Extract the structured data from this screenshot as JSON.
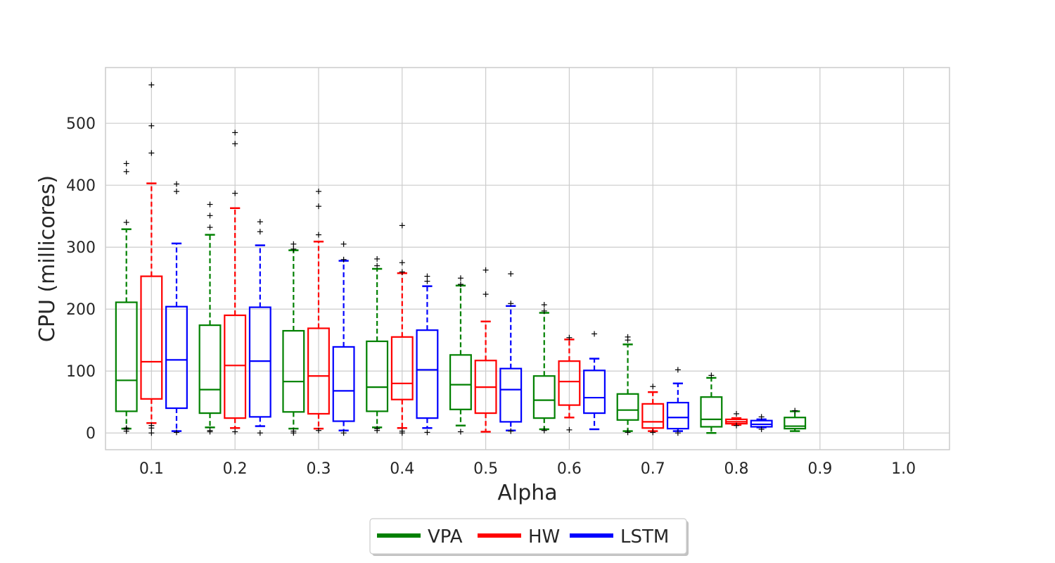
{
  "chart_data": {
    "type": "box",
    "title": "",
    "xlabel": "Alpha",
    "ylabel": "CPU (millicores)",
    "ylim": [
      -27,
      590
    ],
    "xlim": [
      0.045,
      1.055
    ],
    "yticks": [
      0,
      100,
      200,
      300,
      400,
      500
    ],
    "ytick_labels": [
      "0",
      "100",
      "200",
      "300",
      "400",
      "500"
    ],
    "xticks": [
      0.1,
      0.2,
      0.3,
      0.4,
      0.5,
      0.6,
      0.7,
      0.8,
      0.9,
      1.0
    ],
    "xtick_labels": [
      "0.1",
      "0.2",
      "0.3",
      "0.4",
      "0.5",
      "0.6",
      "0.7",
      "0.8",
      "0.9",
      "1.0"
    ],
    "grid": true,
    "legend_position": "bottom-center",
    "series": [
      {
        "name": "VPA",
        "color": "#008000",
        "boxes": [
          {
            "x": 0.07,
            "whislo": 7,
            "q1": 35,
            "med": 85,
            "q3": 211,
            "whishi": 329,
            "fliers": [
              340,
              422,
              435,
              3,
              6,
              8
            ]
          },
          {
            "x": 0.17,
            "whislo": 9,
            "q1": 32,
            "med": 70,
            "q3": 174,
            "whishi": 320,
            "fliers": [
              332,
              351,
              369,
              2,
              4
            ]
          },
          {
            "x": 0.27,
            "whislo": 7,
            "q1": 34,
            "med": 83,
            "q3": 165,
            "whishi": 295,
            "fliers": [
              297,
              305,
              0,
              3
            ]
          },
          {
            "x": 0.37,
            "whislo": 9,
            "q1": 35,
            "med": 74,
            "q3": 148,
            "whishi": 265,
            "fliers": [
              270,
              281,
              4,
              7
            ]
          },
          {
            "x": 0.47,
            "whislo": 12,
            "q1": 38,
            "med": 78,
            "q3": 126,
            "whishi": 238,
            "fliers": [
              240,
              250,
              2
            ]
          },
          {
            "x": 0.57,
            "whislo": 6,
            "q1": 24,
            "med": 53,
            "q3": 92,
            "whishi": 194,
            "fliers": [
              197,
              207,
              4
            ]
          },
          {
            "x": 0.67,
            "whislo": 3,
            "q1": 21,
            "med": 37,
            "q3": 63,
            "whishi": 143,
            "fliers": [
              150,
              155,
              1
            ]
          },
          {
            "x": 0.77,
            "whislo": 0,
            "q1": 10,
            "med": 22,
            "q3": 58,
            "whishi": 89,
            "fliers": [
              93
            ]
          },
          {
            "x": 0.87,
            "whislo": 3,
            "q1": 7,
            "med": 11,
            "q3": 25,
            "whishi": 35,
            "fliers": [
              36
            ]
          }
        ]
      },
      {
        "name": "HW",
        "color": "#ff0000",
        "boxes": [
          {
            "x": 0.1,
            "whislo": 16,
            "q1": 55,
            "med": 115,
            "q3": 253,
            "whishi": 403,
            "fliers": [
              452,
              496,
              562,
              0,
              8,
              12
            ]
          },
          {
            "x": 0.2,
            "whislo": 8,
            "q1": 24,
            "med": 109,
            "q3": 190,
            "whishi": 363,
            "fliers": [
              387,
              467,
              485,
              2
            ]
          },
          {
            "x": 0.3,
            "whislo": 7,
            "q1": 31,
            "med": 92,
            "q3": 169,
            "whishi": 309,
            "fliers": [
              320,
              366,
              390,
              4
            ]
          },
          {
            "x": 0.4,
            "whislo": 8,
            "q1": 54,
            "med": 80,
            "q3": 155,
            "whishi": 258,
            "fliers": [
              260,
              275,
              335,
              0,
              3
            ]
          },
          {
            "x": 0.5,
            "whislo": 2,
            "q1": 32,
            "med": 74,
            "q3": 117,
            "whishi": 180,
            "fliers": [
              224,
              263
            ]
          },
          {
            "x": 0.6,
            "whislo": 25,
            "q1": 45,
            "med": 83,
            "q3": 116,
            "whishi": 151,
            "fliers": [
              154,
              5
            ]
          },
          {
            "x": 0.7,
            "whislo": 3,
            "q1": 8,
            "med": 18,
            "q3": 47,
            "whishi": 66,
            "fliers": [
              75,
              1
            ]
          },
          {
            "x": 0.8,
            "whislo": 13,
            "q1": 15,
            "med": 18,
            "q3": 22,
            "whishi": 24,
            "fliers": [
              31,
              12
            ]
          }
        ]
      },
      {
        "name": "LSTM",
        "color": "#0000ff",
        "boxes": [
          {
            "x": 0.13,
            "whislo": 3,
            "q1": 40,
            "med": 118,
            "q3": 204,
            "whishi": 306,
            "fliers": [
              390,
              402,
              1
            ]
          },
          {
            "x": 0.23,
            "whislo": 11,
            "q1": 26,
            "med": 116,
            "q3": 203,
            "whishi": 303,
            "fliers": [
              325,
              341,
              0
            ]
          },
          {
            "x": 0.33,
            "whislo": 4,
            "q1": 19,
            "med": 68,
            "q3": 139,
            "whishi": 278,
            "fliers": [
              280,
              305,
              0
            ]
          },
          {
            "x": 0.43,
            "whislo": 8,
            "q1": 24,
            "med": 102,
            "q3": 166,
            "whishi": 237,
            "fliers": [
              245,
              253,
              1
            ]
          },
          {
            "x": 0.53,
            "whislo": 4,
            "q1": 18,
            "med": 70,
            "q3": 104,
            "whishi": 205,
            "fliers": [
              209,
              257,
              3
            ]
          },
          {
            "x": 0.63,
            "whislo": 6,
            "q1": 32,
            "med": 57,
            "q3": 101,
            "whishi": 120,
            "fliers": [
              160
            ]
          },
          {
            "x": 0.73,
            "whislo": 3,
            "q1": 7,
            "med": 25,
            "q3": 49,
            "whishi": 80,
            "fliers": [
              102,
              0
            ]
          },
          {
            "x": 0.83,
            "whislo": 9,
            "q1": 10,
            "med": 14,
            "q3": 20,
            "whishi": 22,
            "fliers": [
              26,
              6
            ]
          }
        ]
      }
    ]
  }
}
